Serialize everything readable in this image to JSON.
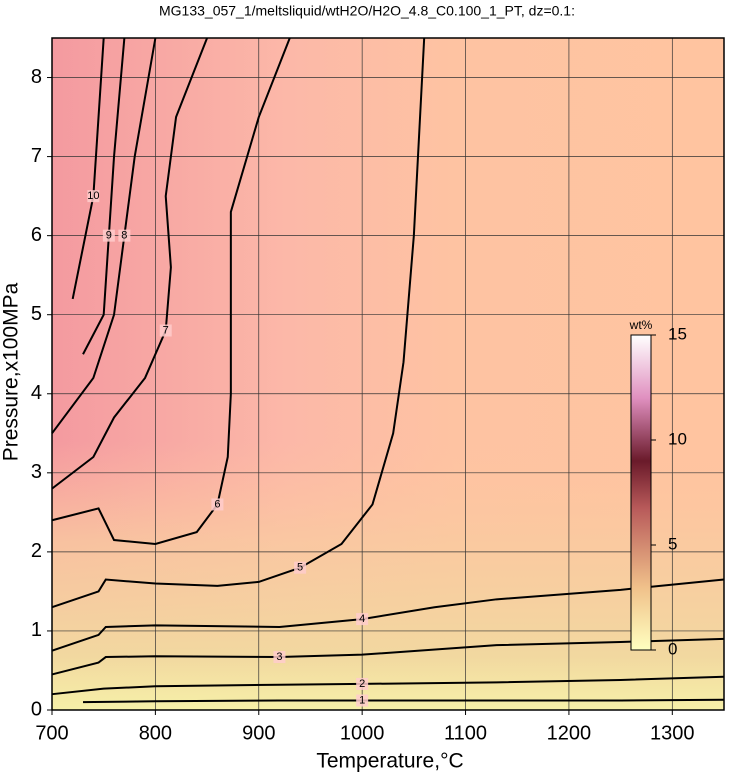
{
  "chart_data": {
    "type": "contour",
    "title": "MG133_057_1/meltsliquid/wtH2O/H2O_4.8_C0.100_1_PT, dz=0.1:",
    "x_label": "Temperature,°C",
    "y_label": "Pressure,x100MPa",
    "xlim": [
      700,
      1350
    ],
    "xticks": [
      700,
      800,
      900,
      1000,
      1100,
      1200,
      1300
    ],
    "ylim": [
      0,
      8.5
    ],
    "yticks": [
      0,
      1,
      2,
      3,
      4,
      5,
      6,
      7,
      8
    ],
    "grid": true,
    "color": "#000000",
    "contours": [
      {
        "level": 1,
        "x": [
          730,
          800,
          920,
          1000,
          1130,
          1250,
          1350
        ],
        "y": [
          0.1,
          0.11,
          0.12,
          0.12,
          0.12,
          0.12,
          0.13
        ]
      },
      {
        "level": 2,
        "x": [
          700,
          750,
          800,
          920,
          1000,
          1130,
          1250,
          1350
        ],
        "y": [
          0.2,
          0.27,
          0.3,
          0.32,
          0.33,
          0.35,
          0.38,
          0.42
        ]
      },
      {
        "level": 3,
        "x": [
          700,
          745,
          752,
          800,
          920,
          1000,
          1130,
          1250,
          1350
        ],
        "y": [
          0.45,
          0.6,
          0.67,
          0.68,
          0.67,
          0.7,
          0.82,
          0.86,
          0.9
        ]
      },
      {
        "level": 4,
        "x": [
          700,
          745,
          752,
          800,
          920,
          1000,
          1070,
          1130,
          1250,
          1350
        ],
        "y": [
          0.75,
          0.95,
          1.05,
          1.07,
          1.05,
          1.15,
          1.3,
          1.4,
          1.52,
          1.65
        ]
      },
      {
        "level": 5,
        "x": [
          700,
          745,
          752,
          800,
          860,
          900,
          940,
          980,
          1010,
          1030,
          1040,
          1050,
          1060
        ],
        "y": [
          1.3,
          1.5,
          1.65,
          1.6,
          1.57,
          1.62,
          1.8,
          2.1,
          2.6,
          3.5,
          4.4,
          6.0,
          8.5
        ]
      },
      {
        "level": 6,
        "x": [
          700,
          745,
          760,
          800,
          840,
          860,
          870,
          873,
          873,
          900,
          930
        ],
        "y": [
          2.4,
          2.55,
          2.15,
          2.1,
          2.25,
          2.6,
          3.2,
          4.0,
          6.3,
          7.5,
          8.5
        ]
      },
      {
        "level": 7,
        "x": [
          700,
          740,
          760,
          790,
          810,
          815,
          810,
          820,
          850
        ],
        "y": [
          2.8,
          3.2,
          3.7,
          4.2,
          4.8,
          5.6,
          6.5,
          7.5,
          8.5
        ]
      },
      {
        "level": 8,
        "x": [
          700,
          740,
          760,
          770,
          780,
          800
        ],
        "y": [
          3.5,
          4.2,
          5.0,
          6.0,
          7.0,
          8.5
        ]
      },
      {
        "level": 9,
        "x": [
          730,
          750,
          755,
          760,
          770
        ],
        "y": [
          4.5,
          5.0,
          6.0,
          7.0,
          8.5
        ]
      },
      {
        "level": 10,
        "x": [
          720,
          740,
          750
        ],
        "y": [
          5.2,
          6.5,
          8.5
        ]
      }
    ],
    "colorbar": {
      "title": "wt%",
      "lim": [
        0,
        15
      ],
      "ticks": [
        0,
        5,
        10,
        15
      ]
    }
  }
}
